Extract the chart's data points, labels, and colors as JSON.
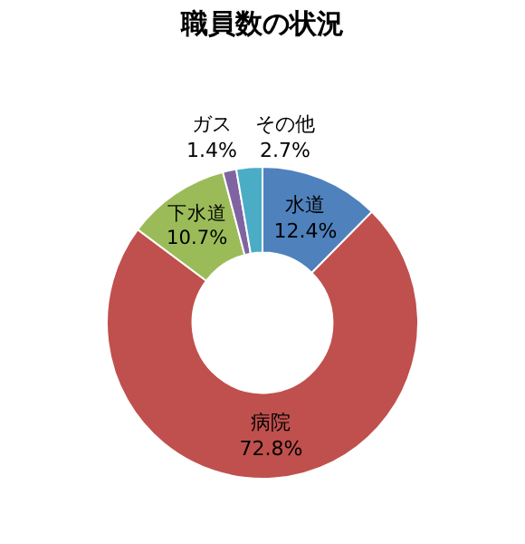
{
  "chart_data": {
    "type": "donut",
    "title": "職員数の状況",
    "categories": [
      "水道",
      "病院",
      "下水道",
      "ガス",
      "その他"
    ],
    "values": [
      12.4,
      72.8,
      10.7,
      1.4,
      2.7
    ],
    "value_labels": [
      "12.4%",
      "72.8%",
      "10.7%",
      "1.4%",
      "2.7%"
    ],
    "colors": [
      "#4f81bd",
      "#c0504d",
      "#9bbb59",
      "#8064a2",
      "#4bacc6"
    ],
    "legend": false
  }
}
